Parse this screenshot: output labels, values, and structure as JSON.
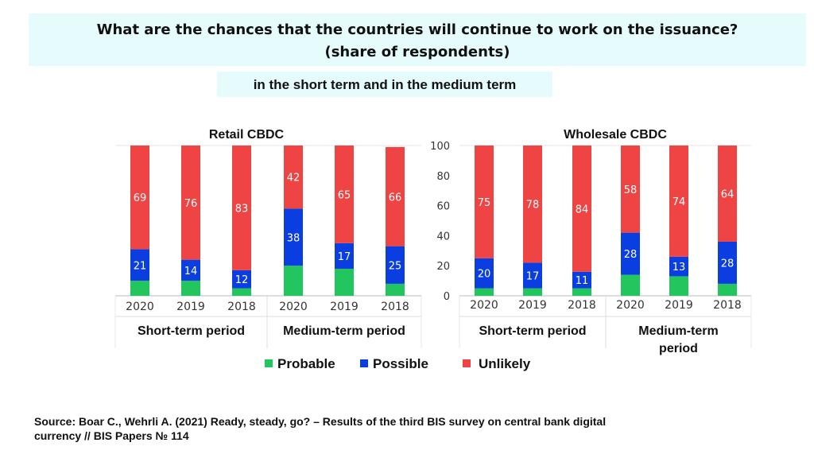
{
  "title": {
    "line1": "What are the chances that the countries will continue to work on the issuance?",
    "line2": "(share of respondents)"
  },
  "subtitle": "in the short term and in the medium term",
  "legend": [
    {
      "label": "Probable",
      "color": "#22c55e"
    },
    {
      "label": "Possible",
      "color": "#0a3ee0"
    },
    {
      "label": "Unlikely",
      "color": "#ef4444"
    }
  ],
  "source": {
    "line1": "Source: Boar C., Wehrli A. (2021)  Ready, steady, go? – Results of the third BIS survey on central bank digital",
    "line2": "currency // BIS Papers № 114"
  },
  "chart_data": [
    {
      "type": "bar",
      "stacked": true,
      "title": "Retail CBDC",
      "ylim": [
        0,
        100
      ],
      "categories": [
        "2020",
        "2019",
        "2018",
        "2020",
        "2019",
        "2018"
      ],
      "groups": [
        "Short-term period",
        "Medium-term period"
      ],
      "series": [
        {
          "name": "Probable",
          "values": [
            10,
            10,
            5,
            20,
            18,
            8
          ]
        },
        {
          "name": "Possible",
          "values": [
            21,
            14,
            12,
            38,
            17,
            25
          ]
        },
        {
          "name": "Unlikely",
          "values": [
            69,
            76,
            83,
            42,
            65,
            66
          ]
        }
      ]
    },
    {
      "type": "bar",
      "stacked": true,
      "title": "Wholesale CBDC",
      "ylim": [
        0,
        100
      ],
      "yticks": [
        0,
        20,
        40,
        60,
        80,
        100
      ],
      "categories": [
        "2020",
        "2019",
        "2018",
        "2020",
        "2019",
        "2018"
      ],
      "groups": [
        "Short-term period",
        "Medium-term period"
      ],
      "series": [
        {
          "name": "Probable",
          "values": [
            5,
            5,
            5,
            14,
            13,
            8
          ]
        },
        {
          "name": "Possible",
          "values": [
            20,
            17,
            11,
            28,
            13,
            28
          ]
        },
        {
          "name": "Unlikely",
          "values": [
            75,
            78,
            84,
            58,
            74,
            64
          ]
        }
      ]
    }
  ]
}
